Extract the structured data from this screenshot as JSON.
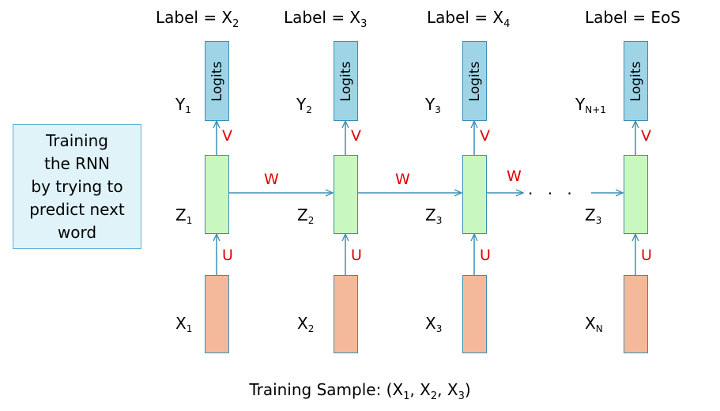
{
  "caption": "Training\nthe RNN\nby trying to\npredict next\nword",
  "columns": [
    {
      "top_label": "Label = X",
      "top_sub": "2",
      "y_var": "Y",
      "y_sub": "1",
      "z_var": "Z",
      "z_sub": "1",
      "x_var": "X",
      "x_sub": "1",
      "logits": "Logits",
      "v": "V",
      "u": "U"
    },
    {
      "top_label": "Label = X",
      "top_sub": "3",
      "y_var": "Y",
      "y_sub": "2",
      "z_var": "Z",
      "z_sub": "2",
      "x_var": "X",
      "x_sub": "2",
      "logits": "Logits",
      "v": "V",
      "u": "U"
    },
    {
      "top_label": "Label = X",
      "top_sub": "4",
      "y_var": "Y",
      "y_sub": "3",
      "z_var": "Z",
      "z_sub": "3",
      "x_var": "X",
      "x_sub": "3",
      "logits": "Logits",
      "v": "V",
      "u": "U"
    },
    {
      "top_label": "Label = EoS",
      "top_sub": "",
      "y_var": "Y",
      "y_sub": "N+1",
      "z_var": "Z",
      "z_sub": "3",
      "x_var": "X",
      "x_sub": "N",
      "logits": "Logits",
      "v": "V",
      "u": "U"
    }
  ],
  "w_labels": [
    "W",
    "W",
    "W"
  ],
  "ellipsis": "· · ·",
  "footer": {
    "prefix": "Training Sample: (X",
    "s1": "1",
    "mid1": ", X",
    "s2": "2",
    "mid2": ", X",
    "s3": "3",
    "suffix": ")"
  },
  "colors": {
    "logits": "#9ed4e6",
    "hidden": "#c8f7c0",
    "input": "#f4b99a",
    "arrow": "#3a8fb5",
    "weight_label": "#e00000",
    "caption_bg": "#dff3f9"
  }
}
